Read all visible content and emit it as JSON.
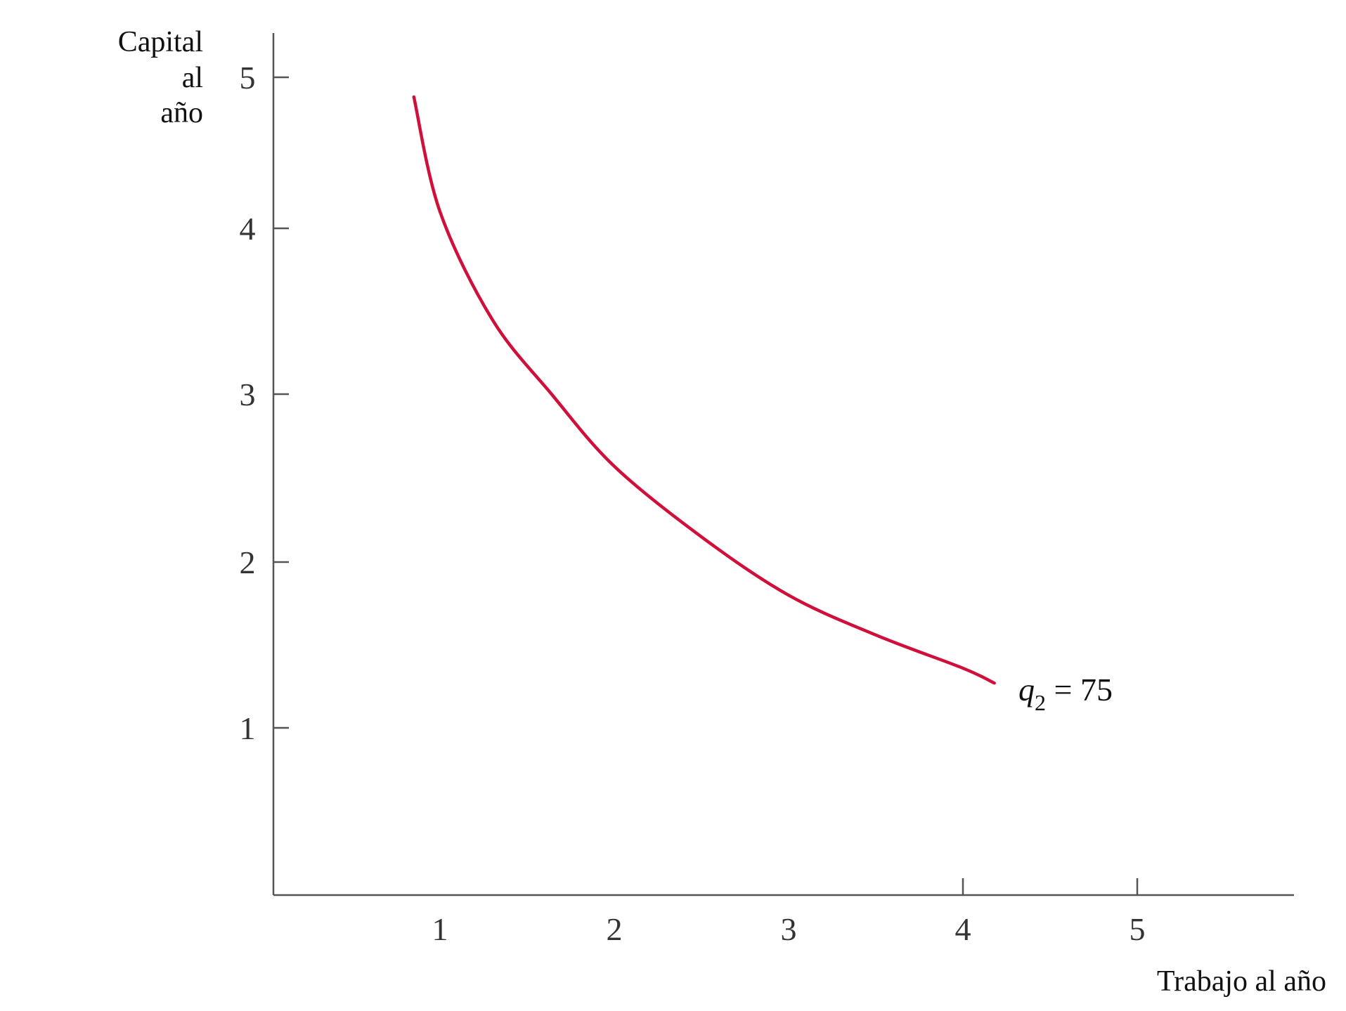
{
  "chart_data": {
    "type": "line",
    "title": "",
    "ylabel_lines": [
      "Capital",
      "al",
      "año"
    ],
    "xlabel": "Trabajo al año",
    "x_ticks": [
      "1",
      "2",
      "3",
      "4",
      "5"
    ],
    "y_ticks": [
      "1",
      "2",
      "3",
      "4",
      "5"
    ],
    "xlim": [
      0,
      5.9
    ],
    "ylim": [
      0,
      5.3
    ],
    "grid": false,
    "series": [
      {
        "name": "q2 = 75",
        "label_main": "q",
        "label_sub": "2",
        "label_rest": " = 75",
        "color": "#d0103a",
        "points": [
          [
            0.85,
            4.87
          ],
          [
            1.0,
            4.11
          ],
          [
            1.3,
            3.45
          ],
          [
            1.64,
            3.0
          ],
          [
            2.0,
            2.57
          ],
          [
            2.5,
            2.15
          ],
          [
            3.0,
            1.8
          ],
          [
            3.5,
            1.56
          ],
          [
            4.0,
            1.36
          ],
          [
            4.18,
            1.27
          ]
        ]
      }
    ]
  }
}
